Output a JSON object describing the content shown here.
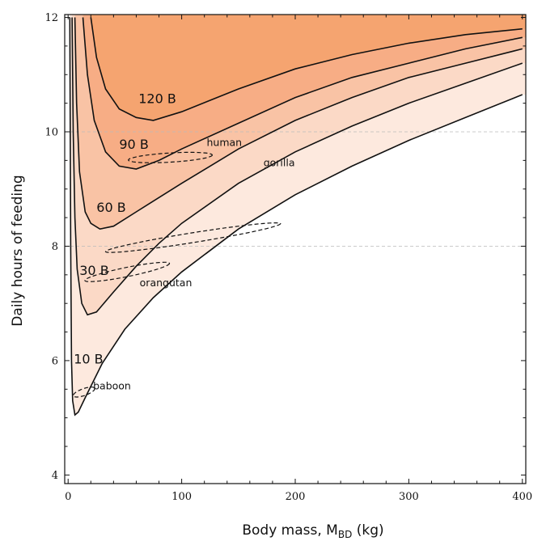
{
  "chart_data": {
    "type": "area",
    "xlabel_main": "Body mass, M",
    "xlabel_sub": "BD",
    "xlabel_unit": " (kg)",
    "ylabel": "Daily hours of feeding",
    "xlim": [
      -3,
      403
    ],
    "ylim": [
      3.85,
      12.05
    ],
    "x_major_ticks": [
      0,
      100,
      200,
      300,
      400
    ],
    "x_minor_step": 20,
    "y_major_ticks": [
      4,
      6,
      8,
      10,
      12
    ],
    "y_minor_step": 0.5,
    "grid_y": [
      8,
      10
    ],
    "fill_colors": [
      "#ffffff",
      "#fde9de",
      "#fbd9c6",
      "#f9c3a5",
      "#f7ad85",
      "#f5a470"
    ],
    "contours": [
      {
        "label": "10 B",
        "points": [
          [
            1.5,
            12
          ],
          [
            2.3,
            8
          ],
          [
            3,
            6
          ],
          [
            4,
            5.3
          ],
          [
            6,
            5.05
          ],
          [
            9,
            5.1
          ],
          [
            15,
            5.35
          ],
          [
            30,
            5.95
          ],
          [
            50,
            6.55
          ],
          [
            75,
            7.1
          ],
          [
            100,
            7.55
          ],
          [
            150,
            8.3
          ],
          [
            200,
            8.9
          ],
          [
            250,
            9.4
          ],
          [
            300,
            9.85
          ],
          [
            350,
            10.25
          ],
          [
            400,
            10.65
          ]
        ]
      },
      {
        "label": "30 B",
        "points": [
          [
            3.5,
            12
          ],
          [
            4.5,
            10
          ],
          [
            6,
            8.5
          ],
          [
            8,
            7.6
          ],
          [
            12,
            7.0
          ],
          [
            17,
            6.8
          ],
          [
            25,
            6.85
          ],
          [
            40,
            7.2
          ],
          [
            60,
            7.65
          ],
          [
            80,
            8.05
          ],
          [
            100,
            8.4
          ],
          [
            150,
            9.1
          ],
          [
            200,
            9.65
          ],
          [
            250,
            10.1
          ],
          [
            300,
            10.5
          ],
          [
            350,
            10.85
          ],
          [
            400,
            11.2
          ]
        ]
      },
      {
        "label": "60 B",
        "points": [
          [
            6,
            12
          ],
          [
            7.5,
            10.5
          ],
          [
            10,
            9.3
          ],
          [
            15,
            8.6
          ],
          [
            20,
            8.4
          ],
          [
            28,
            8.3
          ],
          [
            40,
            8.35
          ],
          [
            60,
            8.6
          ],
          [
            80,
            8.85
          ],
          [
            100,
            9.1
          ],
          [
            150,
            9.7
          ],
          [
            200,
            10.2
          ],
          [
            250,
            10.6
          ],
          [
            300,
            10.95
          ],
          [
            350,
            11.2
          ],
          [
            400,
            11.45
          ]
        ]
      },
      {
        "label": "90 B",
        "points": [
          [
            13,
            12
          ],
          [
            17,
            11
          ],
          [
            23,
            10.2
          ],
          [
            33,
            9.65
          ],
          [
            45,
            9.4
          ],
          [
            60,
            9.35
          ],
          [
            80,
            9.5
          ],
          [
            100,
            9.7
          ],
          [
            150,
            10.15
          ],
          [
            200,
            10.6
          ],
          [
            250,
            10.95
          ],
          [
            300,
            11.2
          ],
          [
            350,
            11.45
          ],
          [
            400,
            11.65
          ]
        ]
      },
      {
        "label": "120 B",
        "points": [
          [
            20,
            12
          ],
          [
            25,
            11.3
          ],
          [
            33,
            10.75
          ],
          [
            45,
            10.4
          ],
          [
            60,
            10.25
          ],
          [
            75,
            10.2
          ],
          [
            100,
            10.35
          ],
          [
            150,
            10.75
          ],
          [
            200,
            11.1
          ],
          [
            250,
            11.35
          ],
          [
            300,
            11.55
          ],
          [
            350,
            11.7
          ],
          [
            400,
            11.8
          ]
        ]
      }
    ],
    "contour_label_positions": [
      [
        5,
        5.95
      ],
      [
        10,
        7.5
      ],
      [
        25,
        8.6
      ],
      [
        45,
        9.7
      ],
      [
        62,
        10.5
      ]
    ],
    "species": [
      {
        "label": "human",
        "cx": 90,
        "cy": 9.55,
        "rx": 37,
        "ry": 0.08,
        "angle_deg": 3.4,
        "label_at": [
          122,
          9.75
        ]
      },
      {
        "label": "gorilla",
        "cx": 110,
        "cy": 8.15,
        "rx": 78,
        "ry": 0.085,
        "angle_deg": 9.1,
        "label_at": [
          172,
          9.4
        ]
      },
      {
        "label": "orangutan",
        "cx": 52,
        "cy": 7.55,
        "rx": 38,
        "ry": 0.08,
        "angle_deg": 11.5,
        "label_at": [
          63,
          7.3
        ]
      },
      {
        "label": "baboon",
        "cx": 14,
        "cy": 5.45,
        "rx": 10,
        "ry": 0.06,
        "angle_deg": 19.5,
        "label_at": [
          22,
          5.5
        ]
      }
    ],
    "tick_labels_x": [
      "0",
      "100",
      "200",
      "300",
      "400"
    ],
    "tick_labels_y": [
      "4",
      "6",
      "8",
      "10",
      "12"
    ]
  }
}
